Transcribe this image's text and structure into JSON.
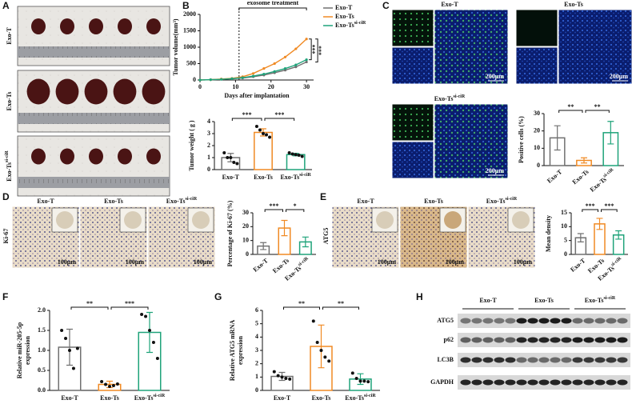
{
  "panels": {
    "labels": [
      "A",
      "B",
      "C",
      "D",
      "E",
      "F",
      "G",
      "H"
    ]
  },
  "panel_a": {
    "rows": [
      "Exo-T",
      "Exo-Ts",
      "Exo-Ts"
    ],
    "row_sup": [
      null,
      null,
      "si-ciR"
    ]
  },
  "panel_c": {
    "titles": [
      "Exo-T",
      "Exo-Ts",
      "Exo-Ts"
    ],
    "title_sup": [
      null,
      null,
      "si-ciR"
    ],
    "scale": "200μm"
  },
  "panel_d": {
    "side": "Ki-67",
    "titles": [
      "Exo-T",
      "Exo-Ts",
      "Exo-Ts"
    ],
    "title_sup": [
      null,
      null,
      "si-ciR"
    ],
    "scale": "100μm"
  },
  "panel_e": {
    "side": "ATG5",
    "titles": [
      "Exo-T",
      "Exo-Ts",
      "Exo-Ts"
    ],
    "title_sup": [
      null,
      null,
      "si-ciR"
    ],
    "scale": "100μm"
  },
  "panel_h": {
    "groups": [
      "Exo-T",
      "Exo-Ts",
      "Exo-Ts"
    ],
    "group_sup": [
      null,
      null,
      "si-ciR"
    ],
    "bands": [
      "ATG5",
      "p62",
      "LC3B",
      "GAPDH"
    ]
  },
  "chart_data": [
    {
      "type": "line",
      "xlabel": "Days after implantation",
      "ylabel": [
        "Tumor volume(mm³)"
      ],
      "annotation": "exosome treatment",
      "treatment_start": 11,
      "x": [
        0,
        3,
        6,
        9,
        12,
        15,
        18,
        21,
        24,
        27,
        30
      ],
      "xlim": [
        0,
        32
      ],
      "xticks": [
        0,
        10,
        20,
        30
      ],
      "ylim": [
        0,
        2000
      ],
      "yticks": [
        0,
        500,
        1000,
        1500,
        2000
      ],
      "series": [
        {
          "name": "Exo-T",
          "color": "#707070",
          "values": [
            0,
            10,
            20,
            40,
            60,
            100,
            150,
            220,
            300,
            400,
            550
          ]
        },
        {
          "name": "Exo-Ts",
          "color": "#f08a24",
          "values": [
            0,
            10,
            30,
            50,
            100,
            200,
            350,
            500,
            700,
            950,
            1250
          ]
        },
        {
          "name": "Exo-Ts",
          "sup": "si-ciR",
          "color": "#1fa37a",
          "values": [
            0,
            10,
            20,
            40,
            70,
            120,
            180,
            260,
            350,
            460,
            620
          ]
        }
      ],
      "significance": [
        "***",
        "***"
      ]
    },
    {
      "type": "bar",
      "ylabel": [
        "Tumor weight ( g )"
      ],
      "categories": [
        "Exo-T",
        "Exo-Ts",
        "Exo-Ts"
      ],
      "category_superscripts": [
        null,
        null,
        "si-ciR"
      ],
      "colors": [
        "#707070",
        "#f08a24",
        "#1fa37a"
      ],
      "values": [
        1.0,
        3.1,
        1.25
      ],
      "errors": [
        0.35,
        0.3,
        0.1
      ],
      "points": [
        [
          1.4,
          1.0,
          1.0,
          0.6,
          0.5
        ],
        [
          3.6,
          3.3,
          3.0,
          2.9,
          2.7
        ],
        [
          1.4,
          1.3,
          1.25,
          1.2,
          1.1
        ]
      ],
      "ylim": [
        0,
        4
      ],
      "yticks": [
        0,
        1,
        2,
        3,
        4
      ],
      "significance": [
        "***",
        "***"
      ]
    },
    {
      "type": "bar",
      "ylabel": [
        "Positive cells (%)"
      ],
      "categories": [
        "Exo-T",
        "Exo-Ts",
        "Exo-Ts"
      ],
      "category_superscripts": [
        null,
        null,
        "si-ciR"
      ],
      "colors": [
        "#707070",
        "#f08a24",
        "#1fa37a"
      ],
      "values": [
        16,
        3,
        19
      ],
      "errors": [
        7,
        1.5,
        6.5
      ],
      "ylim": [
        0,
        30
      ],
      "yticks": [
        0,
        10,
        20,
        30
      ],
      "significance": [
        "**",
        "**"
      ]
    },
    {
      "type": "bar",
      "ylabel": [
        "Percentage of Ki-67 (%)"
      ],
      "categories": [
        "Exo-T",
        "Exo-Ts",
        "Exo-Ts"
      ],
      "category_superscripts": [
        null,
        null,
        "si-ciR"
      ],
      "colors": [
        "#707070",
        "#f08a24",
        "#1fa37a"
      ],
      "values": [
        6,
        19,
        9
      ],
      "errors": [
        2.5,
        5.5,
        3.5
      ],
      "ylim": [
        0,
        30
      ],
      "yticks": [
        0,
        10,
        20,
        30
      ],
      "significance": [
        "***",
        "*"
      ]
    },
    {
      "type": "bar",
      "ylabel": [
        "Mean density"
      ],
      "categories": [
        "Exo-T",
        "Exo-Ts",
        "Exo-Ts"
      ],
      "category_superscripts": [
        null,
        null,
        "si-ciR"
      ],
      "colors": [
        "#707070",
        "#f08a24",
        "#1fa37a"
      ],
      "values": [
        6,
        11,
        7
      ],
      "errors": [
        1.5,
        2,
        1.5
      ],
      "ylim": [
        0,
        15
      ],
      "yticks": [
        0,
        5,
        10,
        15
      ],
      "significance": [
        "***",
        "***"
      ]
    },
    {
      "type": "bar",
      "ylabel": [
        "Relative miR-205-5p",
        "expression"
      ],
      "categories": [
        "Exo-T",
        "Exo-Ts",
        "Exo-Ts"
      ],
      "category_superscripts": [
        null,
        null,
        "si-ciR"
      ],
      "colors": [
        "#707070",
        "#f08a24",
        "#1fa37a"
      ],
      "values": [
        1.08,
        0.15,
        1.45
      ],
      "errors": [
        0.45,
        0.08,
        0.5
      ],
      "points": [
        [
          1.5,
          1.3,
          1.0,
          0.55,
          1.05
        ],
        [
          0.22,
          0.15,
          0.1,
          0.12,
          0.16
        ],
        [
          1.9,
          1.85,
          1.5,
          1.2,
          0.8
        ]
      ],
      "ylim": [
        0,
        2
      ],
      "yticks": [
        {
          "value": 0,
          "label": "0.0"
        },
        0.5,
        {
          "value": 1,
          "label": "1.0"
        },
        1.5,
        {
          "value": 2,
          "label": "2.0"
        }
      ],
      "significance": [
        "**",
        "***"
      ]
    },
    {
      "type": "bar",
      "ylabel": [
        "Relative ATG5 mRNA",
        "expression"
      ],
      "categories": [
        "Exo-T",
        "Exo-Ts",
        "Exo-Ts"
      ],
      "category_superscripts": [
        null,
        null,
        "si-ciR"
      ],
      "colors": [
        "#707070",
        "#f08a24",
        "#1fa37a"
      ],
      "values": [
        1.05,
        3.3,
        0.85
      ],
      "errors": [
        0.3,
        1.6,
        0.4
      ],
      "points": [
        [
          1.4,
          1.1,
          1.0,
          0.9,
          0.85
        ],
        [
          5.2,
          3.6,
          3.0,
          2.5,
          2.2
        ],
        [
          1.3,
          0.9,
          0.7,
          0.7,
          0.65
        ]
      ],
      "ylim": [
        0,
        6
      ],
      "yticks": [
        0,
        1,
        2,
        3,
        4,
        5,
        6
      ],
      "significance": [
        "**",
        "**"
      ]
    }
  ]
}
